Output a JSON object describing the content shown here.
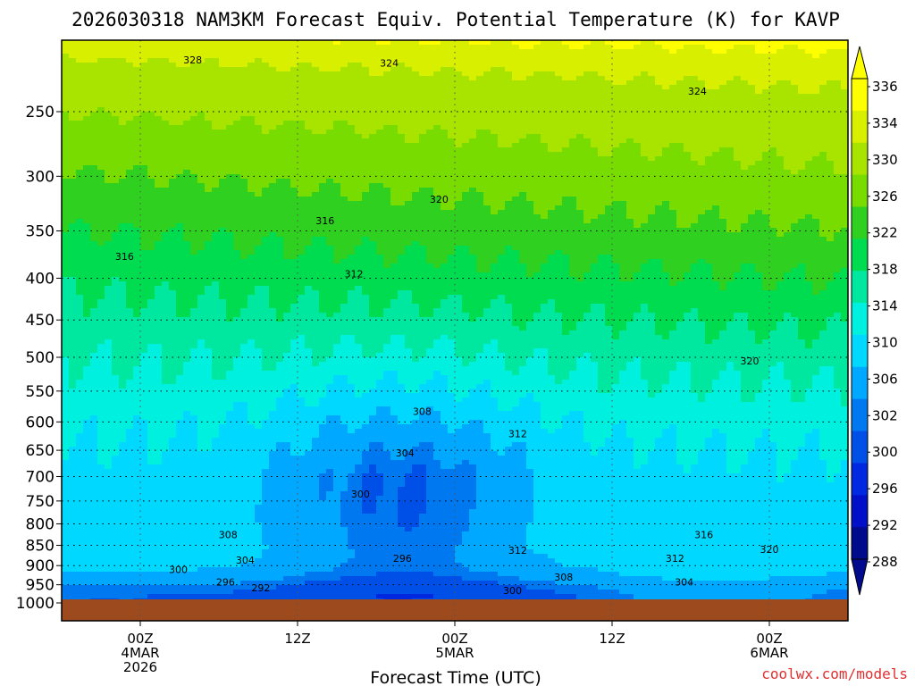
{
  "chart_data": {
    "type": "heatmap",
    "title": "2026030318 NAM3KM Forecast Equiv. Potential Temperature (K) for KAVP",
    "xlabel": "Forecast Time (UTC)",
    "ylabel": "",
    "y_scale": "log-pressure (hPa), inverted",
    "y_ticks": [
      250,
      300,
      350,
      400,
      450,
      500,
      550,
      600,
      650,
      700,
      750,
      800,
      850,
      900,
      950,
      1000
    ],
    "y_range": [
      1000,
      200
    ],
    "x_ticks": [
      {
        "hours": 6,
        "line1": "00Z",
        "line2": "4MAR",
        "line3": "2026"
      },
      {
        "hours": 18,
        "line1": "12Z",
        "line2": "",
        "line3": ""
      },
      {
        "hours": 30,
        "line1": "00Z",
        "line2": "5MAR",
        "line3": ""
      },
      {
        "hours": 42,
        "line1": "12Z",
        "line2": "",
        "line3": ""
      },
      {
        "hours": 54,
        "line1": "00Z",
        "line2": "6MAR",
        "line3": ""
      }
    ],
    "x_range_hours": [
      0,
      60
    ],
    "grid": true,
    "colorbar": {
      "labels": [
        336,
        334,
        330,
        326,
        322,
        318,
        314,
        310,
        306,
        302,
        300,
        296,
        292,
        288
      ],
      "colors": [
        "#ffff00",
        "#d8f000",
        "#a8e400",
        "#78dc00",
        "#30d020",
        "#00dc50",
        "#00e8a0",
        "#00f0e0",
        "#00d8ff",
        "#00a8ff",
        "#0078f0",
        "#0050e8",
        "#0028e0",
        "#0010c8",
        "#000a8c"
      ]
    },
    "contour_labels": [
      {
        "text": "328",
        "hour": 10.0,
        "p": 216
      },
      {
        "text": "324",
        "hour": 25.0,
        "p": 218
      },
      {
        "text": "324",
        "hour": 48.5,
        "p": 236
      },
      {
        "text": "320",
        "hour": 28.8,
        "p": 320
      },
      {
        "text": "316",
        "hour": 4.8,
        "p": 376
      },
      {
        "text": "316",
        "hour": 20.1,
        "p": 340
      },
      {
        "text": "312",
        "hour": 22.3,
        "p": 395
      },
      {
        "text": "320",
        "hour": 52.5,
        "p": 505
      },
      {
        "text": "308",
        "hour": 27.5,
        "p": 582
      },
      {
        "text": "312",
        "hour": 34.8,
        "p": 620
      },
      {
        "text": "304",
        "hour": 26.2,
        "p": 655
      },
      {
        "text": "300",
        "hour": 22.8,
        "p": 735
      },
      {
        "text": "308",
        "hour": 12.7,
        "p": 825
      },
      {
        "text": "312",
        "hour": 34.8,
        "p": 862
      },
      {
        "text": "316",
        "hour": 49.0,
        "p": 825
      },
      {
        "text": "320",
        "hour": 54.0,
        "p": 860
      },
      {
        "text": "304",
        "hour": 14.0,
        "p": 886
      },
      {
        "text": "296",
        "hour": 26.0,
        "p": 882
      },
      {
        "text": "312",
        "hour": 46.8,
        "p": 882
      },
      {
        "text": "300",
        "hour": 8.9,
        "p": 910
      },
      {
        "text": "308",
        "hour": 38.3,
        "p": 930
      },
      {
        "text": "296",
        "hour": 12.5,
        "p": 943
      },
      {
        "text": "292",
        "hour": 15.2,
        "p": 958
      },
      {
        "text": "304",
        "hour": 47.5,
        "p": 943
      },
      {
        "text": "300",
        "hour": 34.4,
        "p": 965
      }
    ]
  },
  "credit": "coolwx.com/models"
}
